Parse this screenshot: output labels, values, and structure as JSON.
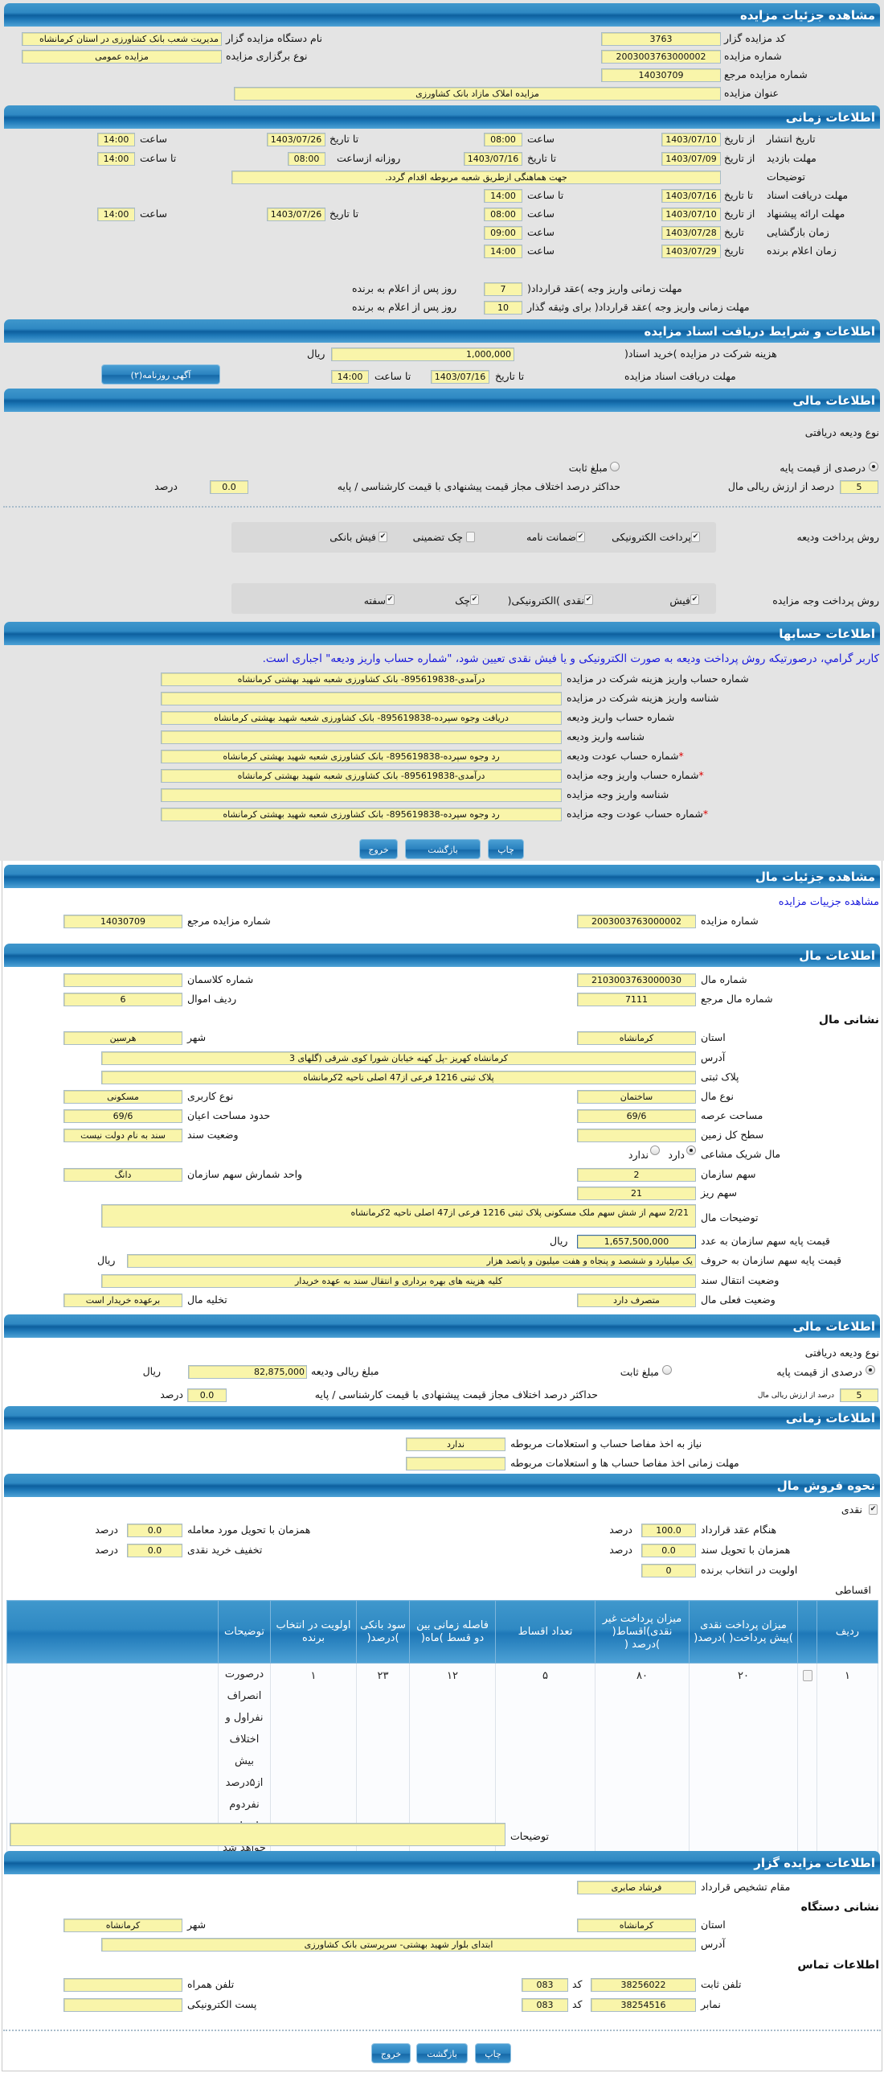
{
  "auction": {
    "title": "مشاهده جزئیات مزایده",
    "code_label": "کد مزایده گزار",
    "code": "3763",
    "org_label": "نام دستگاه مزایده گزار",
    "org": "مدیریت شعب بانک کشاورزی در استان کرمانشاه",
    "number_label": "شماره مزایده",
    "number": "2003003763000002",
    "type_label": "نوع برگزاری مزایده",
    "type": "مزایده عمومی",
    "ref_label": "شماره مزایده مرجع",
    "ref": "14030709",
    "subject_label": "عنوان مزایده",
    "subject": "مزایده املاک مازاد بانک کشاورزی"
  },
  "timing": {
    "title": "اطلاعات زمانی",
    "from_date": "از تاریخ",
    "to_date": "تا تاریخ",
    "date": "تاریخ",
    "hour": "ساعت",
    "to_hour": "تا ساعت",
    "daily_from": "روزانه ازساعت",
    "publish_label": "تاریخ انتشار",
    "publish_from": "1403/07/10",
    "publish_from_time": "08:00",
    "publish_to": "1403/07/26",
    "publish_to_time": "14:00",
    "visit_label": "مهلت بازدید",
    "visit_from": "1403/07/09",
    "visit_to": "1403/07/16",
    "visit_daily_from": "08:00",
    "visit_to_time": "14:00",
    "notes_label": "توضیحات",
    "notes": "جهت هماهنگی ازطریق شعبه مربوطه اقدام گردد.",
    "docs_label": "مهلت دریافت اسناد",
    "docs_to": "1403/07/16",
    "docs_to_time": "14:00",
    "offer_label": "مهلت ارائه پیشنهاد",
    "offer_from": "1403/07/10",
    "offer_from_time": "08:00",
    "offer_to": "1403/07/26",
    "offer_to_time": "14:00",
    "opening_label": "زمان بازگشایی",
    "opening_date": "1403/07/28",
    "opening_time": "09:00",
    "winner_label": "زمان اعلام برنده",
    "winner_date": "1403/07/29",
    "winner_time": "14:00",
    "pay_label": "مهلت زمانی واریز وجه )عقد قرارداد(",
    "pay_days": "7",
    "pay_bail_label": "مهلت زمانی واریز وجه )عقد قرارداد( برای وثیقه گذار",
    "pay_bail_days": "10",
    "days_suffix": "روز پس از اعلام به برنده"
  },
  "docs": {
    "title": "اطلاعات و شرایط دریافت اسناد مزایده",
    "fee_label": "هزینه شرکت در مزایده )خرید اسناد(",
    "fee": "1,000,000",
    "rial": "ریال",
    "deadline_label": "مهلت دریافت اسناد مزایده",
    "to_date": "تا تاریخ",
    "date": "1403/07/16",
    "to_hour": "تا ساعت",
    "time": "14:00",
    "ad_button": "آگهی روزنامه(۲)"
  },
  "finance": {
    "title": "اطلاعات مالی",
    "deposit_type_label": "نوع ودیعه دریافتی",
    "percent_option": "درصدی از قیمت پایه",
    "fixed_option": "مبلغ ثابت",
    "selected": "percent",
    "percent": "5",
    "percent_suffix": "درصد از ارزش ریالی مال",
    "max_diff_label": "حداکثر درصد اختلاف مجاز قیمت پیشنهادی با قیمت کارشناسی / پایه",
    "max_diff": "0.0",
    "percent_word": "درصد",
    "deposit_methods_label": "روش پرداخت ودیعه",
    "deposit_methods": [
      {
        "label": "پرداخت الکترونیکی",
        "checked": true
      },
      {
        "label": "ضمانت نامه",
        "checked": true
      },
      {
        "label": "چک تضمینی",
        "checked": false
      },
      {
        "label": "فیش بانکی",
        "checked": true
      }
    ],
    "payment_methods_label": "روش پرداخت وجه مزایده",
    "payment_methods": [
      {
        "label": "فیش",
        "checked": true
      },
      {
        "label": "نقدی )الکترونیکی(",
        "checked": true
      },
      {
        "label": "چک",
        "checked": true
      },
      {
        "label": "سفته",
        "checked": true
      }
    ]
  },
  "accounts": {
    "title": "اطلاعات حسابها",
    "notice": "کاربر گرامي، درصورتیکه روش پرداخت ودیعه به صورت الکترونیکی و یا فیش نقدی تعیین شود، \"شماره حساب واریز ودیعه\" اجباری است.",
    "rows": [
      {
        "label": "شماره حساب واریز هزینه شرکت در مزایده",
        "value": "درآمدی-895619838- بانک کشاورزی شعبه شهید بهشتی کرمانشاه",
        "required": ""
      },
      {
        "label": "شناسه واریز هزینه شرکت در مزایده",
        "value": "",
        "required": ""
      },
      {
        "label": "شماره حساب واریز ودیعه",
        "value": "دریافت وجوه سپرده-895619838- بانک کشاورزی شعبه شهید بهشتی کرمانشاه",
        "required": ""
      },
      {
        "label": "شناسه واریز ودیعه",
        "value": "",
        "required": ""
      },
      {
        "label": "شماره حساب عودت ودیعه",
        "value": "رد وجوه سپرده-895619838- بانک کشاورزی شعبه شهید بهشتی کرمانشاه",
        "required": "*"
      },
      {
        "label": "شماره حساب واریز وجه مزایده",
        "value": "درآمدی-895619838- بانک کشاورزی شعبه شهید بهشتی کرمانشاه",
        "required": "*"
      },
      {
        "label": "شناسه واریز وجه مزایده",
        "value": "",
        "required": ""
      },
      {
        "label": "شماره حساب عودت وجه مزایده",
        "value": "رد وجوه سپرده-895619838- بانک کشاورزی شعبه شهید بهشتی کرمانشاه",
        "required": "*"
      }
    ]
  },
  "buttons": {
    "print": "چاپ",
    "back": "بازگشت",
    "exit": "خروج"
  },
  "item": {
    "title": "مشاهده جزئیات مال",
    "auction_link": "مشاهده جزییات مزایده",
    "auction_number_label": "شماره مزایده",
    "auction_number": "2003003763000002",
    "auction_ref_label": "شماره مزایده مرجع",
    "auction_ref": "14030709"
  },
  "item_info": {
    "title": "اطلاعات مال",
    "number_label": "شماره مال",
    "number": "2103003763000030",
    "class_label": "شماره کلاسمان",
    "class": "",
    "ref_label": "شماره مال مرجع",
    "ref": "7111",
    "row_label": "ردیف اموال",
    "row": "6",
    "address_heading": "نشانی مال",
    "province_label": "استان",
    "province": "کرمانشاه",
    "city_label": "شهر",
    "city": "هرسین",
    "address_label": "آدرس",
    "address": "کرمانشاه  کهریز -پل کهنه خیابان شورا کوی شرقی (گلهای 3",
    "plate_label": "پلاک ثبتی",
    "plate": "پلاک ثبتی 1216 فرعی از47 اصلی ناحیه 2کرمانشاه",
    "kind_label": "نوع مال",
    "kind": "ساختمان",
    "usage_label": "نوع کاربری",
    "usage": "مسکونی",
    "land_area_label": "مساحت عرصه",
    "land_area": "69/6",
    "building_area_label": "حدود مساحت اعیان",
    "building_area": "69/6",
    "total_land_label": "سطح کل زمین",
    "total_land": "",
    "deed_label": "وضعیت سند",
    "deed": "سند به نام دولت نیست",
    "shared_label": "مال شریک مشاعی",
    "shared_yes": "دارد",
    "shared_no": "ندارد",
    "shared": "yes",
    "share_label": "سهم سازمان",
    "share": "2",
    "share_unit_label": "واحد شمارش سهم سازمان",
    "share_unit": "دانگ",
    "subshare_label": "سهم ریز",
    "subshare": "21",
    "desc_label": "توضیحات مال",
    "desc": "2/21 سهم  از شش سهم  ملک مسکونی پلاک ثبتی 1216 فرعی از47 اصلی ناحیه 2کرمانشاه",
    "price_label": "قیمت پایه سهم سازمان به عدد",
    "price": "1,657,500,000",
    "rial": "ریال",
    "price_words_label": "قیمت پایه سهم سازمان به حروف",
    "price_words": "یک میلیارد و ششصد و پنجاه و هفت میلیون و پانصد هزار",
    "transfer_label": "وضعیت انتقال سند",
    "transfer": "کلیه هزینه های بهره برداری و انتقال سند به عهده خریدار",
    "status_label": "وضعیت فعلی مال",
    "status": "متصرف دارد",
    "evacuation_label": "تخلیه مال",
    "evacuation": "برعهده خریدار است"
  },
  "item_finance": {
    "title": "اطلاعات مالی",
    "deposit_type_label": "نوع ودیعه دریافتی",
    "percent_option": "درصدی از قیمت پایه",
    "fixed_option": "مبلغ ثابت",
    "selected": "percent",
    "deposit_amount_label": "مبلغ ریالی ودیعه",
    "deposit_amount": "82,875,000",
    "rial": "ریال",
    "percent": "5",
    "percent_suffix": "درصد از ارزش ریالی مال",
    "max_diff_label": "حداکثر درصد اختلاف مجاز قیمت پیشنهادی با قیمت کارشناسی / پایه",
    "max_diff": "0.0",
    "percent_word": "درصد"
  },
  "item_timing": {
    "title": "اطلاعات زمانی",
    "clearance_label": "نیاز به اخذ مفاصا حساب و استعلامات مربوطه",
    "clearance": "ندارد",
    "clearance_deadline_label": "مهلت زمانی اخذ مفاصا حساب ها و استعلامات مربوطه",
    "clearance_deadline": ""
  },
  "sale": {
    "title": "نحوه فروش مال",
    "cash_label": "نقدی",
    "cash_checked": true,
    "percent_word": "درصد",
    "on_contract_label": "هنگام عقد قرارداد",
    "on_contract": "100.0",
    "on_delivery_label": "همزمان با تحویل مورد معامله",
    "on_delivery": "0.0",
    "on_deed_label": "همزمان با تحویل سند",
    "on_deed": "0.0",
    "cash_discount_label": "تخفیف خرید نقدی",
    "cash_discount": "0.0",
    "priority_label": "اولویت در انتخاب برنده",
    "priority": "0",
    "installment_label": "اقساطی",
    "table": {
      "headers": [
        "ردیف",
        "",
        "میزان پرداخت نقدی )پیش پرداخت( )درصد(",
        "میزان پرداخت غیر نقدی)اقساط( )درصد (",
        "تعداد اقساط",
        "فاصله زمانی بین دو قسط )ماه(",
        "سود بانکی )درصد(",
        "اولویت در انتخاب برنده",
        "توضیحات",
        ""
      ],
      "rows": [
        [
          "۱",
          "",
          "۲۰",
          "۸۰",
          "۵",
          "۱۲",
          "۲۳",
          "۱",
          "درصورت انصراف نفراول و اختلاف بیش از۵درصد نفردوم انتخاب خواهد شد",
          ""
        ]
      ]
    },
    "notes_label": "توضیحات",
    "notes": ""
  },
  "auctioneer": {
    "title": "اطلاعات مزایده گزار",
    "authority_label": "مقام تشخیص قرارداد",
    "authority": "فرشاد  صابری",
    "address_heading": "نشانی دستگاه",
    "province_label": "استان",
    "province": "کرمانشاه",
    "city_label": "شهر",
    "city": "کرمانشاه",
    "address_label": "آدرس",
    "address": "ابتدای بلوار شهید بهشتی- سرپرستی بانک کشاورزی",
    "contact_heading": "اطلاعات تماس",
    "phone_label": "تلفن ثابت",
    "phone": "38256022",
    "code_label": "کد",
    "phone_code": "083",
    "mobile_label": "تلفن همراه",
    "mobile": "",
    "fax_label": "نمابر",
    "fax": "38254516",
    "fax_code": "083",
    "email_label": "پست الکترونیکی",
    "email": ""
  },
  "colors": {
    "header": "#1f79b8",
    "field": "#f9f5aa",
    "page_top": "#e4e4e4",
    "link": "#1a1adc",
    "required": "#dd0000"
  }
}
